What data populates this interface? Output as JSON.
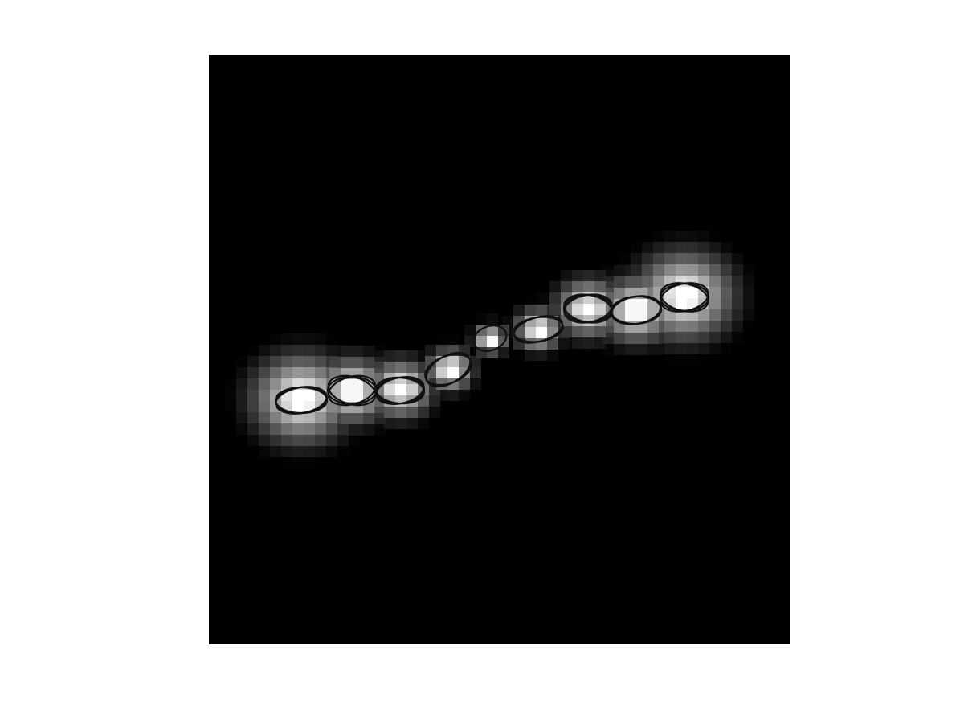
{
  "figure": {
    "background_color": "#ffffff",
    "image_background_color": "#000000",
    "colormap": "gray",
    "blob_color": "#ffffff",
    "ellipse_color": "#000000"
  },
  "image_content": {
    "description_kind": "grayscale intensity image with black outlined ellipse fits",
    "blob_count": 9,
    "ellipse_groups": 9
  }
}
